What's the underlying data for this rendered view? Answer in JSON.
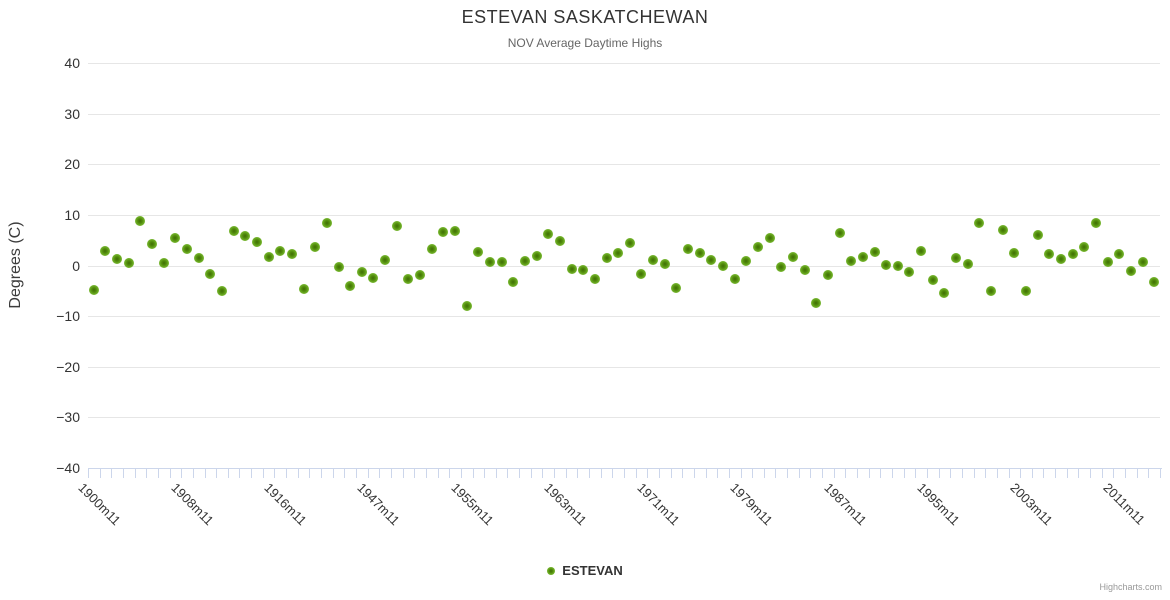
{
  "header": {
    "title": "ESTEVAN SASKATCHEWAN",
    "subtitle": "NOV Average Daytime Highs"
  },
  "legend": {
    "label": "ESTEVAN"
  },
  "credits": {
    "label": "Highcharts.com"
  },
  "colors": {
    "marker_outer": "#85c840",
    "marker_inner": "#3f6d06",
    "grid": "#e6e6e6",
    "axis_line": "#ccd6eb",
    "tick": "#ccd6eb",
    "title": "#333333",
    "subtitle": "#666666",
    "axis_label": "#333333",
    "credits": "#999999"
  },
  "chart_data": {
    "type": "scatter",
    "title": "ESTEVAN SASKATCHEWAN",
    "subtitle": "NOV Average Daytime Highs",
    "xlabel": "",
    "ylabel": "Degrees (C)",
    "ylim": [
      -40,
      40
    ],
    "ytick_interval": 10,
    "grid": true,
    "legend_position": "bottom-center",
    "x_tick_label_step": 8,
    "series_name": "ESTEVAN",
    "categories": [
      "1900m11",
      "1901m11",
      "1902m11",
      "1903m11",
      "1904m11",
      "1905m11",
      "1906m11",
      "1907m11",
      "1908m11",
      "1909m11",
      "1910m11",
      "1911m11",
      "1912m11",
      "1913m11",
      "1914m11",
      "1915m11",
      "1916m11",
      "1917m11",
      "1918m11",
      "1919m11",
      "1920m11",
      "1921m11",
      "1922m11",
      "1923m11",
      "1947m11",
      "1948m11",
      "1949m11",
      "1950m11",
      "1951m11",
      "1952m11",
      "1953m11",
      "1954m11",
      "1955m11",
      "1956m11",
      "1957m11",
      "1958m11",
      "1959m11",
      "1960m11",
      "1961m11",
      "1962m11",
      "1963m11",
      "1964m11",
      "1965m11",
      "1966m11",
      "1967m11",
      "1968m11",
      "1969m11",
      "1970m11",
      "1971m11",
      "1972m11",
      "1973m11",
      "1974m11",
      "1975m11",
      "1976m11",
      "1977m11",
      "1978m11",
      "1979m11",
      "1980m11",
      "1981m11",
      "1982m11",
      "1983m11",
      "1984m11",
      "1985m11",
      "1986m11",
      "1987m11",
      "1988m11",
      "1989m11",
      "1990m11",
      "1991m11",
      "1992m11",
      "1993m11",
      "1994m11",
      "1995m11",
      "1996m11",
      "1997m11",
      "1998m11",
      "1999m11",
      "2000m11",
      "2001m11",
      "2002m11",
      "2003m11",
      "2004m11",
      "2005m11",
      "2006m11",
      "2007m11",
      "2008m11",
      "2009m11",
      "2010m11",
      "2011m11",
      "2012m11",
      "2013m11",
      "2014m11"
    ],
    "values": [
      -4.9,
      2.9,
      1.2,
      0.4,
      8.8,
      4.2,
      0.4,
      5.5,
      3.3,
      1.4,
      -1.7,
      -5.0,
      6.9,
      5.9,
      4.7,
      1.7,
      2.9,
      2.3,
      -4.7,
      3.7,
      8.3,
      -0.3,
      -4.1,
      -1.3,
      -2.4,
      1.0,
      7.8,
      -2.7,
      -1.9,
      3.3,
      6.6,
      6.8,
      -8.0,
      2.6,
      0.6,
      0.6,
      -3.3,
      0.9,
      1.8,
      6.2,
      4.9,
      -0.6,
      -0.9,
      -2.7,
      1.4,
      2.4,
      4.4,
      -1.6,
      1.1,
      0.2,
      -4.4,
      3.2,
      2.5,
      1.1,
      0.0,
      -2.7,
      0.8,
      3.7,
      5.4,
      -0.2,
      1.6,
      -0.8,
      -7.5,
      -1.9,
      6.5,
      0.9,
      1.7,
      2.7,
      0.1,
      -0.1,
      -1.2,
      2.9,
      -2.9,
      -5.5,
      1.4,
      0.3,
      8.4,
      -5.0,
      7.1,
      2.5,
      -5.1,
      6.0,
      2.3,
      1.2,
      2.3,
      3.7,
      8.4,
      0.6,
      2.2,
      -1.1,
      0.6,
      -3.3
    ]
  }
}
